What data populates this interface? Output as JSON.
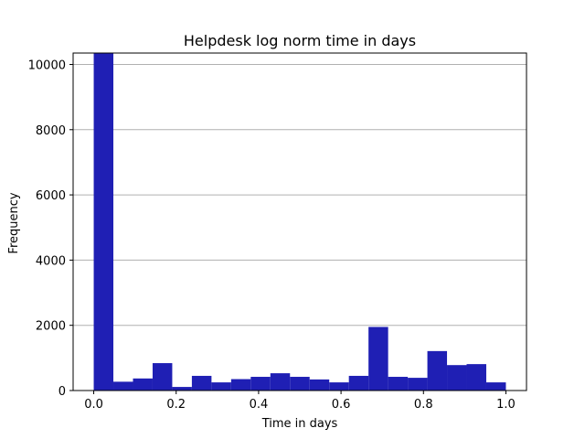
{
  "chart_data": {
    "type": "bar",
    "title": "Helpdesk log norm time in days",
    "xlabel": "Time in days",
    "ylabel": "Frequency",
    "xlim": [
      -0.05,
      1.05
    ],
    "ylim": [
      0,
      10350
    ],
    "x_ticks": [
      0.0,
      0.2,
      0.4,
      0.6,
      0.8,
      1.0
    ],
    "x_tick_labels": [
      "0.0",
      "0.2",
      "0.4",
      "0.6",
      "0.8",
      "1.0"
    ],
    "y_ticks": [
      0,
      2000,
      4000,
      6000,
      8000,
      10000
    ],
    "y_tick_labels": [
      "0",
      "2000",
      "4000",
      "6000",
      "8000",
      "10000"
    ],
    "grid": "y",
    "bar_color": "#1f1fb4",
    "bin_edges": [
      0.0,
      0.05,
      0.1,
      0.15,
      0.2,
      0.25,
      0.3,
      0.35,
      0.4,
      0.45,
      0.5,
      0.55,
      0.6,
      0.65,
      0.7,
      0.75,
      0.8,
      0.85,
      0.9,
      0.95,
      1.0
    ],
    "values": [
      10350,
      270,
      370,
      840,
      110,
      450,
      250,
      350,
      420,
      530,
      420,
      340,
      250,
      450,
      1950,
      420,
      390,
      1210,
      780,
      810,
      250
    ]
  }
}
